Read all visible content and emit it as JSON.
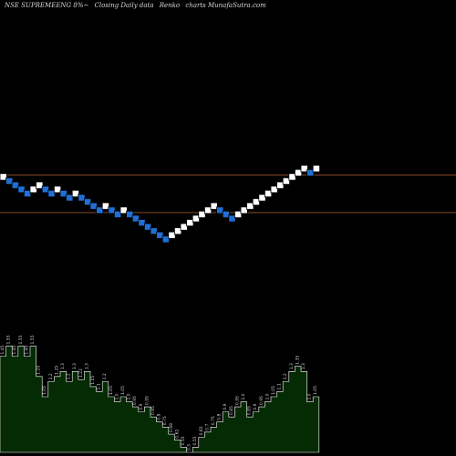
{
  "title": {
    "symbol": "NSE SUPREMEENG 8%~",
    "desc": "Closing Daily data",
    "type": "Renko",
    "site": "charts MunafaSutra.com"
  },
  "colors": {
    "background": "#000000",
    "up_brick": "#ffffff",
    "down_brick": "#1f6fd6",
    "brick_edge": "#000000",
    "line": "#8a4a2a",
    "volume_fill": "#052b05",
    "volume_stroke": "#ffffff",
    "volume_label": "#cfcfcf"
  },
  "chart_data": [
    {
      "type": "renko",
      "brick_steps": [
        0,
        -1,
        -1,
        -1,
        -1,
        1,
        1,
        -1,
        -1,
        1,
        -1,
        -1,
        1,
        -1,
        -1,
        -1,
        -1,
        1,
        -1,
        -1,
        1,
        -1,
        -1,
        -1,
        -1,
        -1,
        -1,
        -1,
        1,
        1,
        1,
        1,
        1,
        1,
        1,
        1,
        -1,
        -1,
        -1,
        1,
        1,
        1,
        1,
        1,
        1,
        1,
        1,
        1,
        1,
        1,
        1,
        -1,
        1
      ],
      "horizontal_levels": [
        0,
        -9
      ],
      "ylim": [
        -19.5,
        3.5
      ]
    },
    {
      "type": "area",
      "values": [
        1.45,
        1.55,
        1.45,
        1.55,
        1.45,
        1.55,
        1.25,
        1.05,
        1.2,
        1.25,
        1.3,
        1.2,
        1.3,
        1.22,
        1.3,
        1.15,
        1.1,
        1.2,
        1.05,
        1.0,
        1.05,
        1.0,
        0.95,
        0.9,
        0.95,
        0.85,
        0.8,
        0.75,
        0.68,
        0.62,
        0.55,
        0.5,
        0.55,
        0.65,
        0.7,
        0.75,
        0.8,
        0.9,
        0.85,
        0.95,
        1.0,
        0.85,
        0.9,
        0.95,
        1.0,
        1.05,
        1.1,
        1.2,
        1.3,
        1.35,
        1.3,
        1.0,
        1.05
      ],
      "labels": [
        "1.45",
        "1.55",
        "1.45",
        "1.55",
        "1.45",
        "1.55",
        "1.25",
        "1.05",
        "1.2",
        "1.25",
        "1.3",
        "1.2",
        "1.3",
        "1.22",
        "1.3",
        "1.15",
        "1.1",
        "1.2",
        "1.05",
        "1.0",
        "1.05",
        "1.0",
        "0.95",
        "0.9",
        "0.95",
        "0.85",
        "0.8",
        "0.75",
        "0.68",
        "0.62",
        "0.55",
        "0.5",
        "0.55",
        "0.65",
        "0.7",
        "0.75",
        "0.8",
        "0.9",
        "0.85",
        "0.95",
        "1.0",
        "0.85",
        "0.9",
        "0.95",
        "1.0",
        "1.05",
        "1.1",
        "1.2",
        "1.3",
        "1.35",
        "1.3",
        "1.0",
        "1.05"
      ],
      "ylim": [
        0.5,
        1.6
      ]
    }
  ]
}
